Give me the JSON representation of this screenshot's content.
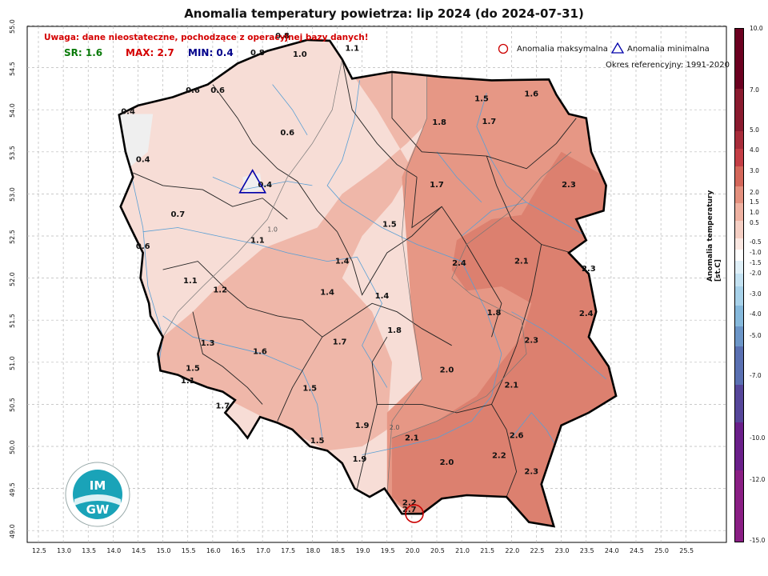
{
  "title": "Anomalia temperatury powietrza: lip 2024 (do 2024-07-31)",
  "warning": "Uwaga: dane nieostateczne, pochodzące z operacyjnej bazy danych!",
  "stats": {
    "sr": "SR: 1.6",
    "sr_color": "#0a7a0a",
    "max": "MAX: 2.7",
    "max_color": "#d40000",
    "min": "MIN: 0.4",
    "min_color": "#00008b"
  },
  "legend": {
    "max_label": "Anomalia maksymalna",
    "min_label": "Anomalia minimalna",
    "reference": "Okres referencyjny: 1991-2020"
  },
  "colorbar": {
    "title": "Anomalia temperatury [st.C]",
    "ticks": [
      "10.0",
      "7.0",
      "5.0",
      "4.0",
      "3.0",
      "2.0",
      "1.5",
      "1.0",
      "0.5",
      "-0.5",
      "-1.0",
      "-1.5",
      "-2.0",
      "-3.0",
      "-4.0",
      "-5.0",
      "-7.0",
      "-10.0",
      "-12.0",
      "-15.0"
    ]
  },
  "axes": {
    "x_ticks": [
      "12.5",
      "13.0",
      "13.5",
      "14.0",
      "14.5",
      "15.0",
      "15.5",
      "16.0",
      "16.5",
      "17.0",
      "17.5",
      "18.0",
      "18.5",
      "19.0",
      "19.5",
      "20.0",
      "20.5",
      "21.0",
      "21.5",
      "22.0",
      "22.5",
      "23.0",
      "23.5",
      "24.0",
      "24.5",
      "25.0",
      "25.5"
    ],
    "y_ticks": [
      "55.0",
      "54.5",
      "54.0",
      "53.5",
      "53.0",
      "52.5",
      "52.0",
      "51.5",
      "51.0",
      "50.5",
      "50.0",
      "49.5",
      "49.0"
    ]
  },
  "logo": {
    "text": "IMGW"
  },
  "station_values": [
    {
      "v": "0.8",
      "lon": 17.4,
      "lat": 54.85
    },
    {
      "v": "1.0",
      "lon": 17.75,
      "lat": 54.63
    },
    {
      "v": "0.8",
      "lon": 16.9,
      "lat": 54.65
    },
    {
      "v": "1.1",
      "lon": 18.8,
      "lat": 54.7
    },
    {
      "v": "0.6",
      "lon": 15.6,
      "lat": 54.2
    },
    {
      "v": "0.6",
      "lon": 16.1,
      "lat": 54.2
    },
    {
      "v": "0.4",
      "lon": 14.3,
      "lat": 53.95
    },
    {
      "v": "0.6",
      "lon": 17.5,
      "lat": 53.7
    },
    {
      "v": "0.4",
      "lon": 14.6,
      "lat": 53.38
    },
    {
      "v": "0.4",
      "lon": 17.05,
      "lat": 53.08
    },
    {
      "v": "0.7",
      "lon": 15.3,
      "lat": 52.73
    },
    {
      "v": "0.6",
      "lon": 14.6,
      "lat": 52.35
    },
    {
      "v": "1.1",
      "lon": 16.9,
      "lat": 52.42
    },
    {
      "v": "1.1",
      "lon": 15.55,
      "lat": 51.94
    },
    {
      "v": "1.2",
      "lon": 16.15,
      "lat": 51.83
    },
    {
      "v": "1.4",
      "lon": 18.6,
      "lat": 52.17
    },
    {
      "v": "1.4",
      "lon": 18.3,
      "lat": 51.8
    },
    {
      "v": "1.4",
      "lon": 19.4,
      "lat": 51.76
    },
    {
      "v": "1.3",
      "lon": 15.9,
      "lat": 51.2
    },
    {
      "v": "1.6",
      "lon": 16.95,
      "lat": 51.1
    },
    {
      "v": "1.7",
      "lon": 18.55,
      "lat": 51.21
    },
    {
      "v": "1.8",
      "lon": 19.65,
      "lat": 51.35
    },
    {
      "v": "1.5",
      "lon": 15.6,
      "lat": 50.9
    },
    {
      "v": "1.1",
      "lon": 15.5,
      "lat": 50.75
    },
    {
      "v": "1.5",
      "lon": 17.95,
      "lat": 50.66
    },
    {
      "v": "1.7",
      "lon": 16.2,
      "lat": 50.45
    },
    {
      "v": "1.9",
      "lon": 19.0,
      "lat": 50.22
    },
    {
      "v": "1.5",
      "lon": 18.1,
      "lat": 50.04
    },
    {
      "v": "1.9",
      "lon": 18.95,
      "lat": 49.82
    },
    {
      "v": "2.1",
      "lon": 20.0,
      "lat": 50.07
    },
    {
      "v": "1.5",
      "lon": 21.4,
      "lat": 54.1
    },
    {
      "v": "1.6",
      "lon": 22.4,
      "lat": 54.16
    },
    {
      "v": "1.8",
      "lon": 20.55,
      "lat": 53.82
    },
    {
      "v": "1.7",
      "lon": 21.55,
      "lat": 53.83
    },
    {
      "v": "1.7",
      "lon": 20.5,
      "lat": 53.08
    },
    {
      "v": "1.5",
      "lon": 19.55,
      "lat": 52.61
    },
    {
      "v": "2.3",
      "lon": 23.15,
      "lat": 53.08
    },
    {
      "v": "2.4",
      "lon": 20.95,
      "lat": 52.15
    },
    {
      "v": "2.1",
      "lon": 22.2,
      "lat": 52.17
    },
    {
      "v": "2.3",
      "lon": 23.55,
      "lat": 52.08
    },
    {
      "v": "1.8",
      "lon": 21.65,
      "lat": 51.56
    },
    {
      "v": "2.4",
      "lon": 23.5,
      "lat": 51.55
    },
    {
      "v": "2.3",
      "lon": 22.4,
      "lat": 51.23
    },
    {
      "v": "2.0",
      "lon": 20.7,
      "lat": 50.88
    },
    {
      "v": "2.1",
      "lon": 22.0,
      "lat": 50.7
    },
    {
      "v": "2.6",
      "lon": 22.1,
      "lat": 50.1
    },
    {
      "v": "2.0",
      "lon": 20.7,
      "lat": 49.78
    },
    {
      "v": "2.2",
      "lon": 21.75,
      "lat": 49.86
    },
    {
      "v": "2.3",
      "lon": 22.4,
      "lat": 49.67
    },
    {
      "v": "2.2",
      "lon": 19.95,
      "lat": 49.3
    },
    {
      "v": "2.7",
      "lon": 19.95,
      "lat": 49.22
    }
  ],
  "contour_labels": [
    {
      "v": "1.0",
      "lon": 17.2,
      "lat": 52.55
    },
    {
      "v": "2.0",
      "lon": 19.65,
      "lat": 50.2
    }
  ],
  "max_marker": {
    "lon": 20.05,
    "lat": 49.22
  },
  "min_marker": {
    "lon": 16.8,
    "lat": 53.12
  }
}
